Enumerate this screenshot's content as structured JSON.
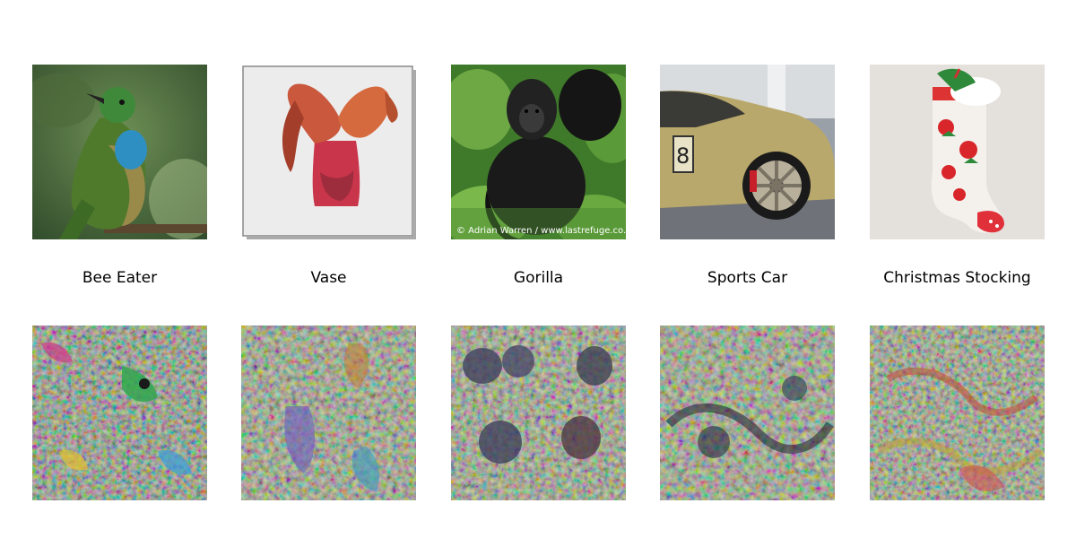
{
  "panels": [
    {
      "label": "Bee Eater",
      "photo_icon": "bee-eater-bird",
      "vis_icon": "bee-eater-feature-visualization"
    },
    {
      "label": "Vase",
      "photo_icon": "red-vase-with-petals",
      "vis_icon": "vase-feature-visualization"
    },
    {
      "label": "Gorilla",
      "photo_icon": "gorilla-in-grass",
      "vis_icon": "gorilla-feature-visualization",
      "watermark": "© Adrian Warren / www.lastrefuge.co.uk"
    },
    {
      "label": "Sports Car",
      "photo_icon": "gold-sports-car",
      "vis_icon": "sports-car-feature-visualization"
    },
    {
      "label": "Christmas Stocking",
      "photo_icon": "christmas-stocking",
      "vis_icon": "stocking-feature-visualization"
    }
  ],
  "colors": {
    "background": "#ffffff",
    "vis_base": "#8a8a66"
  }
}
